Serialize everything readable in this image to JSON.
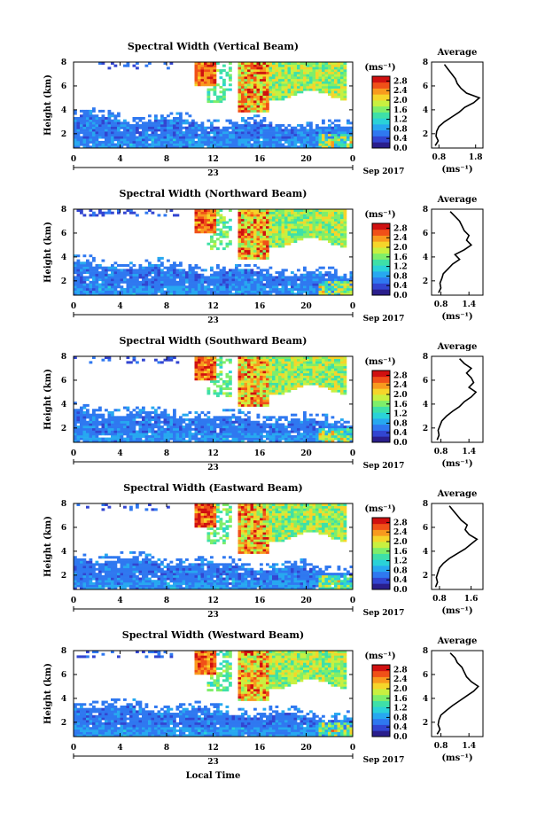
{
  "figure": {
    "xlabel": "Local Time",
    "date_label": "Sep 2017",
    "day_label": "23"
  },
  "colors": {
    "colormap": [
      "#2a1e8c",
      "#3245d1",
      "#2f78f0",
      "#27a8f0",
      "#2ad2d8",
      "#3ee0a8",
      "#7eee6a",
      "#c8f040",
      "#f5d52a",
      "#f89a1e",
      "#f05018",
      "#d01010"
    ],
    "no_data": "#ffffff"
  },
  "chart_data": [
    {
      "type": "heatmap",
      "title": "Spectral Width (Vertical Beam)",
      "xlabel": "",
      "ylabel": "Height (km)",
      "x_ticks": [
        "0",
        "4",
        "8",
        "12",
        "16",
        "20",
        "0"
      ],
      "y_ticks": [
        "2",
        "4",
        "6",
        "8"
      ],
      "xlim": [
        0,
        24
      ],
      "ylim": [
        0.8,
        8
      ],
      "colorbar": {
        "unit": "(ms⁻¹)",
        "ticks": [
          "0.0",
          "0.4",
          "0.8",
          "1.2",
          "1.6",
          "2.0",
          "2.4",
          "2.8"
        ],
        "range": [
          0.0,
          3.0
        ]
      },
      "average_profile": {
        "title": "Average",
        "xlabel": "(ms⁻¹)",
        "x_ticks": [
          "0.8",
          "1.8"
        ],
        "xlim": [
          0.6,
          2.0
        ],
        "y_ticks": [
          "2",
          "4",
          "6",
          "8"
        ],
        "height": [
          1.0,
          1.4,
          1.8,
          2.2,
          2.6,
          3.0,
          3.4,
          3.8,
          4.2,
          4.6,
          5.0,
          5.4,
          5.8,
          6.2,
          6.6,
          7.0,
          7.4,
          7.8
        ],
        "width": [
          0.7,
          0.78,
          0.72,
          0.74,
          0.8,
          0.95,
          1.15,
          1.35,
          1.5,
          1.75,
          1.9,
          1.55,
          1.4,
          1.3,
          1.25,
          1.15,
          1.05,
          0.95
        ]
      }
    },
    {
      "type": "heatmap",
      "title": "Spectral Width (Northward Beam)",
      "xlabel": "",
      "ylabel": "Height (km)",
      "x_ticks": [
        "0",
        "4",
        "8",
        "12",
        "16",
        "20",
        "0"
      ],
      "y_ticks": [
        "2",
        "4",
        "6",
        "8"
      ],
      "xlim": [
        0,
        24
      ],
      "ylim": [
        0.8,
        8
      ],
      "colorbar": {
        "unit": "(ms⁻¹)",
        "ticks": [
          "0.0",
          "0.4",
          "0.8",
          "1.2",
          "1.6",
          "2.0",
          "2.4",
          "2.8"
        ],
        "range": [
          0.0,
          3.0
        ]
      },
      "average_profile": {
        "title": "Average",
        "xlabel": "(ms⁻¹)",
        "x_ticks": [
          "0.8",
          "1.4"
        ],
        "xlim": [
          0.6,
          1.7
        ],
        "y_ticks": [
          "2",
          "4",
          "6",
          "8"
        ],
        "height": [
          1.0,
          1.4,
          1.8,
          2.2,
          2.6,
          3.0,
          3.4,
          3.8,
          4.2,
          4.6,
          5.0,
          5.4,
          5.8,
          6.2,
          6.6,
          7.0,
          7.4,
          7.8
        ],
        "width": [
          0.75,
          0.8,
          0.78,
          0.82,
          0.85,
          0.95,
          1.05,
          1.2,
          1.1,
          1.3,
          1.45,
          1.35,
          1.4,
          1.3,
          1.25,
          1.2,
          1.1,
          1.0
        ]
      }
    },
    {
      "type": "heatmap",
      "title": "Spectral Width (Southward Beam)",
      "xlabel": "",
      "ylabel": "Height (km)",
      "x_ticks": [
        "0",
        "4",
        "8",
        "12",
        "16",
        "20",
        "0"
      ],
      "y_ticks": [
        "2",
        "4",
        "6",
        "8"
      ],
      "xlim": [
        0,
        24
      ],
      "ylim": [
        0.8,
        8
      ],
      "colorbar": {
        "unit": "(ms⁻¹)",
        "ticks": [
          "0.0",
          "0.4",
          "0.8",
          "1.2",
          "1.6",
          "2.0",
          "2.4",
          "2.8"
        ],
        "range": [
          0.0,
          3.0
        ]
      },
      "average_profile": {
        "title": "Average",
        "xlabel": "(ms⁻¹)",
        "x_ticks": [
          "0.8",
          "1.4"
        ],
        "xlim": [
          0.6,
          1.7
        ],
        "y_ticks": [
          "2",
          "4",
          "6",
          "8"
        ],
        "height": [
          1.0,
          1.4,
          1.8,
          2.2,
          2.6,
          3.0,
          3.4,
          3.8,
          4.2,
          4.6,
          5.0,
          5.4,
          5.8,
          6.2,
          6.6,
          7.0,
          7.4,
          7.8
        ],
        "width": [
          0.72,
          0.76,
          0.74,
          0.78,
          0.82,
          0.92,
          1.05,
          1.2,
          1.3,
          1.45,
          1.55,
          1.4,
          1.5,
          1.45,
          1.35,
          1.45,
          1.3,
          1.2
        ]
      }
    },
    {
      "type": "heatmap",
      "title": "Spectral Width (Eastward Beam)",
      "xlabel": "",
      "ylabel": "Height (km)",
      "x_ticks": [
        "0",
        "4",
        "8",
        "12",
        "16",
        "20",
        "0"
      ],
      "y_ticks": [
        "2",
        "4",
        "6",
        "8"
      ],
      "xlim": [
        0,
        24
      ],
      "ylim": [
        0.8,
        8
      ],
      "colorbar": {
        "unit": "(ms⁻¹)",
        "ticks": [
          "0.0",
          "0.4",
          "0.8",
          "1.2",
          "1.6",
          "2.0",
          "2.4",
          "2.8"
        ],
        "range": [
          0.0,
          3.0
        ]
      },
      "average_profile": {
        "title": "Average",
        "xlabel": "(ms⁻¹)",
        "x_ticks": [
          "0.8",
          "1.6"
        ],
        "xlim": [
          0.6,
          1.9
        ],
        "y_ticks": [
          "2",
          "4",
          "6",
          "8"
        ],
        "height": [
          1.0,
          1.4,
          1.8,
          2.2,
          2.6,
          3.0,
          3.4,
          3.8,
          4.2,
          4.6,
          5.0,
          5.4,
          5.8,
          6.2,
          6.6,
          7.0,
          7.4,
          7.8
        ],
        "width": [
          0.7,
          0.75,
          0.72,
          0.76,
          0.8,
          0.9,
          1.05,
          1.25,
          1.45,
          1.6,
          1.75,
          1.55,
          1.45,
          1.5,
          1.35,
          1.25,
          1.15,
          1.05
        ]
      }
    },
    {
      "type": "heatmap",
      "title": "Spectral Width (Westward Beam)",
      "xlabel": "Local Time",
      "ylabel": "Height (km)",
      "x_ticks": [
        "0",
        "4",
        "8",
        "12",
        "16",
        "20",
        "0"
      ],
      "y_ticks": [
        "2",
        "4",
        "6",
        "8"
      ],
      "xlim": [
        0,
        24
      ],
      "ylim": [
        0.8,
        8
      ],
      "colorbar": {
        "unit": "(ms⁻¹)",
        "ticks": [
          "0.0",
          "0.4",
          "0.8",
          "1.2",
          "1.6",
          "2.0",
          "2.4",
          "2.8"
        ],
        "range": [
          0.0,
          3.0
        ]
      },
      "average_profile": {
        "title": "Average",
        "xlabel": "(ms⁻¹)",
        "x_ticks": [
          "0.8",
          "1.4"
        ],
        "xlim": [
          0.6,
          1.7
        ],
        "y_ticks": [
          "2",
          "4",
          "6",
          "8"
        ],
        "height": [
          1.0,
          1.4,
          1.8,
          2.2,
          2.6,
          3.0,
          3.4,
          3.8,
          4.2,
          4.6,
          5.0,
          5.4,
          5.8,
          6.2,
          6.6,
          7.0,
          7.4,
          7.8
        ],
        "width": [
          0.72,
          0.78,
          0.74,
          0.76,
          0.8,
          0.92,
          1.05,
          1.2,
          1.35,
          1.5,
          1.6,
          1.45,
          1.35,
          1.3,
          1.25,
          1.15,
          1.1,
          1.0
        ]
      }
    }
  ]
}
